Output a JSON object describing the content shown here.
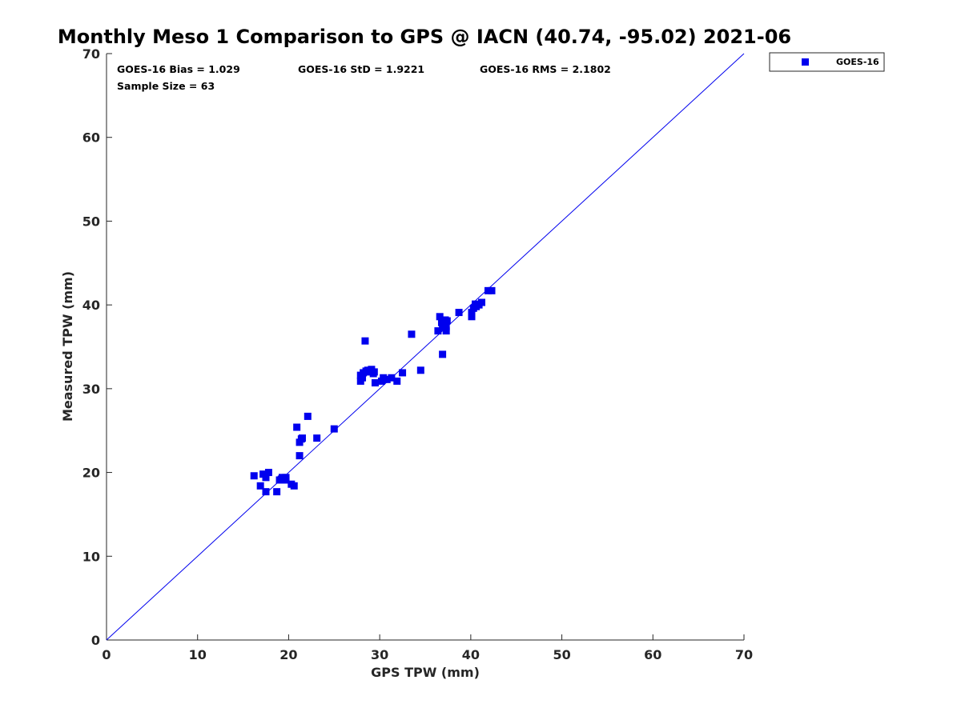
{
  "chart_data": {
    "type": "scatter",
    "title": "Monthly Meso 1 Comparison to GPS @ IACN (40.74, -95.02) 2021-06",
    "xlabel": "GPS TPW (mm)",
    "ylabel": "Measured TPW (mm)",
    "xlim": [
      0,
      70
    ],
    "ylim": [
      0,
      70
    ],
    "xticks": [
      "0",
      "10",
      "20",
      "30",
      "40",
      "50",
      "60",
      "70"
    ],
    "yticks": [
      "0",
      "10",
      "20",
      "30",
      "40",
      "50",
      "60",
      "70"
    ],
    "reference_line": {
      "label": "1:1 line",
      "x": [
        0,
        70
      ],
      "y": [
        0,
        70
      ]
    },
    "legend": {
      "entries": [
        "GOES-16"
      ],
      "position": "outside top-right"
    },
    "stats": {
      "bias": "GOES-16 Bias = 1.029",
      "std": "GOES-16 StD = 1.9221",
      "rms": "GOES-16 RMS = 2.1802",
      "sample": "Sample Size = 63"
    },
    "series": [
      {
        "name": "GOES-16",
        "color": "#0000ee",
        "marker": "square",
        "points": [
          [
            16.2,
            19.6
          ],
          [
            16.9,
            18.4
          ],
          [
            17.2,
            19.8
          ],
          [
            17.5,
            17.7
          ],
          [
            17.5,
            19.4
          ],
          [
            17.8,
            20.0
          ],
          [
            18.7,
            17.7
          ],
          [
            19.0,
            19.1
          ],
          [
            19.3,
            19.4
          ],
          [
            19.7,
            19.4
          ],
          [
            19.7,
            19.1
          ],
          [
            20.3,
            18.6
          ],
          [
            20.6,
            18.4
          ],
          [
            20.9,
            25.4
          ],
          [
            21.2,
            22.0
          ],
          [
            21.2,
            23.6
          ],
          [
            21.4,
            24.0
          ],
          [
            21.5,
            24.1
          ],
          [
            22.1,
            26.7
          ],
          [
            23.1,
            24.1
          ],
          [
            25.0,
            25.2
          ],
          [
            27.9,
            30.9
          ],
          [
            27.9,
            31.6
          ],
          [
            28.1,
            31.3
          ],
          [
            28.2,
            31.9
          ],
          [
            28.4,
            35.7
          ],
          [
            28.5,
            32.1
          ],
          [
            28.9,
            32.0
          ],
          [
            29.1,
            32.3
          ],
          [
            29.3,
            31.8
          ],
          [
            29.4,
            32.0
          ],
          [
            29.5,
            30.7
          ],
          [
            30.2,
            30.9
          ],
          [
            30.4,
            31.3
          ],
          [
            30.8,
            31.1
          ],
          [
            31.3,
            31.3
          ],
          [
            31.9,
            30.9
          ],
          [
            32.5,
            31.9
          ],
          [
            33.5,
            36.5
          ],
          [
            34.5,
            32.2
          ],
          [
            36.4,
            36.9
          ],
          [
            36.6,
            38.6
          ],
          [
            36.8,
            37.9
          ],
          [
            36.9,
            34.1
          ],
          [
            37.1,
            37.6
          ],
          [
            37.2,
            38.2
          ],
          [
            37.3,
            36.9
          ],
          [
            37.3,
            37.4
          ],
          [
            37.4,
            38.1
          ],
          [
            38.7,
            39.1
          ],
          [
            40.1,
            38.6
          ],
          [
            40.1,
            39.1
          ],
          [
            40.3,
            39.6
          ],
          [
            40.5,
            40.1
          ],
          [
            40.6,
            39.8
          ],
          [
            40.9,
            40.0
          ],
          [
            41.2,
            40.3
          ],
          [
            41.9,
            41.7
          ],
          [
            42.3,
            41.7
          ],
          [
            37.0,
            37.3
          ],
          [
            28.7,
            32.2
          ],
          [
            19.2,
            19.2
          ],
          [
            36.9,
            37.6
          ]
        ]
      }
    ]
  }
}
